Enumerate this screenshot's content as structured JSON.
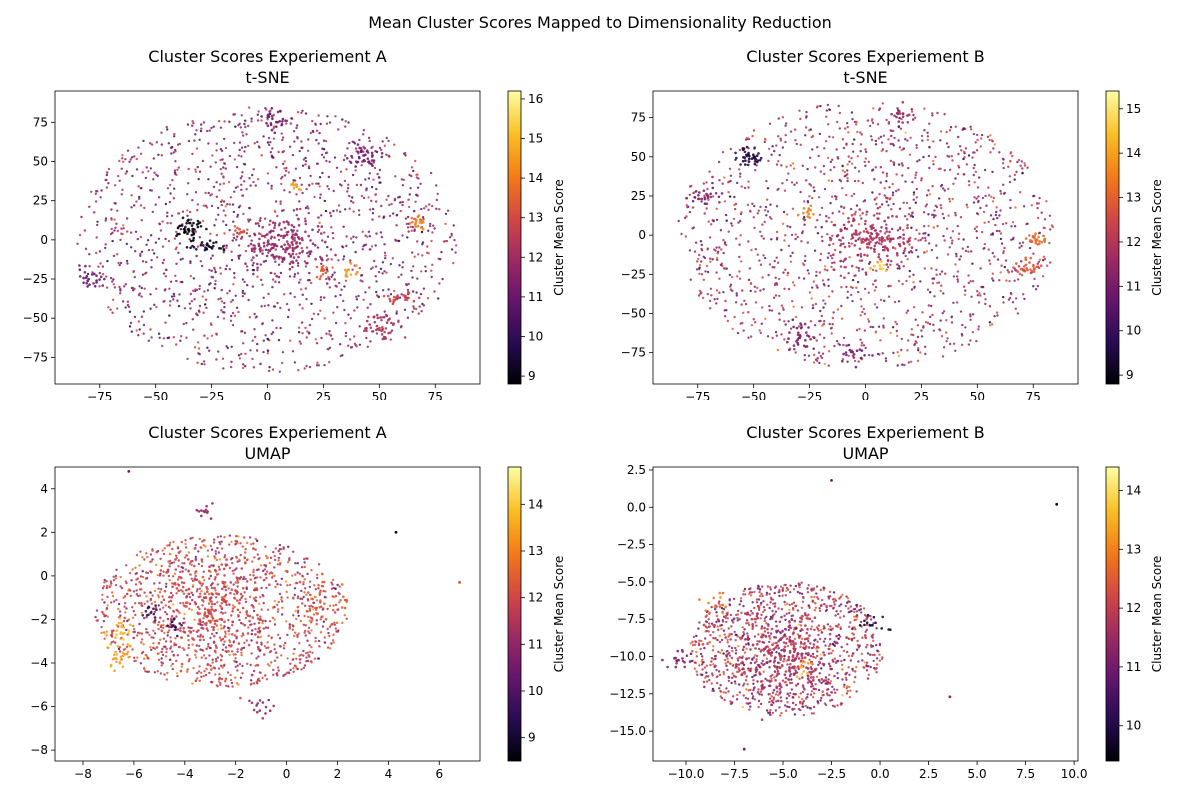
{
  "figure": {
    "suptitle": "Mean Cluster Scores Mapped to Dimensionality Reduction"
  },
  "chart_data": [
    {
      "type": "scatter",
      "title": "Cluster Scores Experiement A",
      "subtitle": "t-SNE",
      "xlabel": "",
      "ylabel": "",
      "xlim": [
        -95,
        95
      ],
      "ylim": [
        -92,
        95
      ],
      "xticks": [
        -75,
        -50,
        -25,
        0,
        25,
        50,
        75
      ],
      "yticks": [
        -75,
        -50,
        -25,
        0,
        25,
        50,
        75
      ],
      "colorbar": {
        "label": "Cluster Mean Score",
        "range": [
          8.8,
          16.2
        ],
        "ticks": [
          9,
          10,
          11,
          12,
          13,
          14,
          15,
          16
        ],
        "colormap": "inferno"
      },
      "points_description_clusters": [
        {
          "x": 8,
          "y": -2,
          "score": 11.8,
          "spread": 9,
          "n": 160
        },
        {
          "x": -35,
          "y": 7,
          "score": 8.9,
          "spread": 3,
          "n": 40
        },
        {
          "x": -27,
          "y": -4,
          "score": 9.3,
          "spread": 3,
          "n": 30
        },
        {
          "x": 50,
          "y": -55,
          "score": 12.3,
          "spread": 4,
          "n": 40
        },
        {
          "x": 45,
          "y": 52,
          "score": 11.2,
          "spread": 4,
          "n": 35
        },
        {
          "x": 67,
          "y": 12,
          "score": 14.0,
          "spread": 2,
          "n": 20
        },
        {
          "x": 60,
          "y": -38,
          "score": 12.8,
          "spread": 3,
          "n": 25
        },
        {
          "x": -78,
          "y": -25,
          "score": 11.0,
          "spread": 3,
          "n": 25
        },
        {
          "x": 3,
          "y": 77,
          "score": 11.0,
          "spread": 3,
          "n": 25
        },
        {
          "x": 25,
          "y": -20,
          "score": 13.5,
          "spread": 2,
          "n": 15
        },
        {
          "x": 38,
          "y": -20,
          "score": 14.5,
          "spread": 2,
          "n": 12
        },
        {
          "x": -12,
          "y": 5,
          "score": 13.2,
          "spread": 2,
          "n": 12
        },
        {
          "x": 12,
          "y": 33,
          "score": 14.6,
          "spread": 2,
          "n": 10
        }
      ],
      "background": {
        "radius_x": 85,
        "radius_y": 85,
        "n": 1400,
        "score_mean": 11.6,
        "score_sd": 0.8
      }
    },
    {
      "type": "scatter",
      "title": "Cluster Scores Experiement B",
      "subtitle": "t-SNE",
      "xlabel": "",
      "ylabel": "",
      "xlim": [
        -95,
        95
      ],
      "ylim": [
        -95,
        92
      ],
      "xticks": [
        -75,
        -50,
        -25,
        0,
        25,
        50,
        75
      ],
      "yticks": [
        -75,
        -50,
        -25,
        0,
        25,
        50,
        75
      ],
      "colorbar": {
        "label": "Cluster Mean Score",
        "range": [
          8.8,
          15.4
        ],
        "ticks": [
          9,
          10,
          11,
          12,
          13,
          14,
          15
        ],
        "colormap": "inferno"
      },
      "points_description_clusters": [
        {
          "x": 2,
          "y": 0,
          "score": 11.9,
          "spread": 9,
          "n": 160
        },
        {
          "x": -52,
          "y": 50,
          "score": 9.6,
          "spread": 3,
          "n": 40
        },
        {
          "x": 72,
          "y": -20,
          "score": 12.8,
          "spread": 3,
          "n": 30
        },
        {
          "x": 76,
          "y": -3,
          "score": 13.2,
          "spread": 2,
          "n": 20
        },
        {
          "x": -30,
          "y": -65,
          "score": 11.0,
          "spread": 4,
          "n": 30
        },
        {
          "x": -73,
          "y": 25,
          "score": 11.2,
          "spread": 3,
          "n": 25
        },
        {
          "x": 15,
          "y": 75,
          "score": 11.5,
          "spread": 3,
          "n": 20
        },
        {
          "x": -25,
          "y": 15,
          "score": 13.5,
          "spread": 2,
          "n": 12
        },
        {
          "x": 5,
          "y": -20,
          "score": 14.5,
          "spread": 2,
          "n": 10
        },
        {
          "x": -5,
          "y": -75,
          "score": 11.0,
          "spread": 3,
          "n": 20
        }
      ],
      "background": {
        "radius_x": 85,
        "radius_y": 85,
        "n": 1400,
        "score_mean": 11.6,
        "score_sd": 0.8
      }
    },
    {
      "type": "scatter",
      "title": "Cluster Scores Experiement A",
      "subtitle": "UMAP",
      "xlabel": "",
      "ylabel": "",
      "xlim": [
        -9.1,
        7.6
      ],
      "ylim": [
        -8.5,
        5.0
      ],
      "xticks": [
        -8,
        -6,
        -4,
        -2,
        0,
        2,
        4,
        6
      ],
      "yticks": [
        -8,
        -6,
        -4,
        -2,
        0,
        2,
        4
      ],
      "colorbar": {
        "label": "Cluster Mean Score",
        "range": [
          8.5,
          14.8
        ],
        "ticks": [
          9,
          10,
          11,
          12,
          13,
          14
        ],
        "colormap": "inferno"
      },
      "points_description_clusters": [
        {
          "x": -3.0,
          "y": -1.5,
          "score": 12.0,
          "spread": 1.2,
          "n": 220
        },
        {
          "x": -6.6,
          "y": -3.7,
          "score": 13.5,
          "spread": 0.3,
          "n": 30
        },
        {
          "x": -6.4,
          "y": -2.6,
          "score": 13.8,
          "spread": 0.3,
          "n": 20
        },
        {
          "x": -5.4,
          "y": -1.6,
          "score": 9.8,
          "spread": 0.2,
          "n": 15
        },
        {
          "x": -4.5,
          "y": -2.3,
          "score": 9.5,
          "spread": 0.2,
          "n": 12
        },
        {
          "x": -1.0,
          "y": -6.0,
          "score": 11.0,
          "spread": 0.3,
          "n": 15
        },
        {
          "x": -3.2,
          "y": 3.0,
          "score": 11.0,
          "spread": 0.2,
          "n": 12
        },
        {
          "x": 1.5,
          "y": -1.3,
          "score": 12.5,
          "spread": 0.5,
          "n": 25
        }
      ],
      "background": {
        "cx": -2.6,
        "cy": -1.6,
        "radius_x": 5.0,
        "radius_y": 3.5,
        "n": 1200,
        "score_mean": 11.8,
        "score_sd": 0.7
      },
      "outliers": [
        {
          "x": 6.8,
          "y": -0.3,
          "score": 12.2
        },
        {
          "x": 4.3,
          "y": 2.0,
          "score": 9.0
        },
        {
          "x": -6.2,
          "y": 4.8,
          "score": 10.5
        }
      ]
    },
    {
      "type": "scatter",
      "title": "Cluster Scores Experiement B",
      "subtitle": "UMAP",
      "xlabel": "",
      "ylabel": "",
      "xlim": [
        -11.7,
        10.2
      ],
      "ylim": [
        -17.0,
        2.7
      ],
      "xticks": [
        -10.0,
        -7.5,
        -5.0,
        -2.5,
        0.0,
        2.5,
        5.0,
        7.5,
        10.0
      ],
      "yticks": [
        -15.0,
        -12.5,
        -10.0,
        -7.5,
        -5.0,
        -2.5,
        0.0,
        2.5
      ],
      "colorbar": {
        "label": "Cluster Mean Score",
        "range": [
          9.4,
          14.4
        ],
        "ticks": [
          10,
          11,
          12,
          13,
          14
        ],
        "colormap": "inferno"
      },
      "points_description_clusters": [
        {
          "x": -4.8,
          "y": -10.0,
          "score": 11.8,
          "spread": 1.3,
          "n": 220
        },
        {
          "x": -8.5,
          "y": -6.5,
          "score": 13.0,
          "spread": 0.4,
          "n": 15
        },
        {
          "x": -0.3,
          "y": -7.8,
          "score": 9.8,
          "spread": 0.4,
          "n": 15
        },
        {
          "x": -3.8,
          "y": -10.8,
          "score": 13.5,
          "spread": 0.3,
          "n": 10
        },
        {
          "x": -10.3,
          "y": -10.3,
          "score": 11.2,
          "spread": 0.4,
          "n": 20
        }
      ],
      "background": {
        "cx": -4.8,
        "cy": -9.5,
        "radius_x": 5.0,
        "radius_y": 4.5,
        "n": 1100,
        "score_mean": 11.7,
        "score_sd": 0.6
      },
      "outliers": [
        {
          "x": 9.1,
          "y": 0.2,
          "score": 9.6
        },
        {
          "x": -2.5,
          "y": 1.8,
          "score": 11.0
        },
        {
          "x": -7.0,
          "y": -16.2,
          "score": 11.0
        },
        {
          "x": 3.6,
          "y": -12.7,
          "score": 11.2
        }
      ]
    }
  ]
}
